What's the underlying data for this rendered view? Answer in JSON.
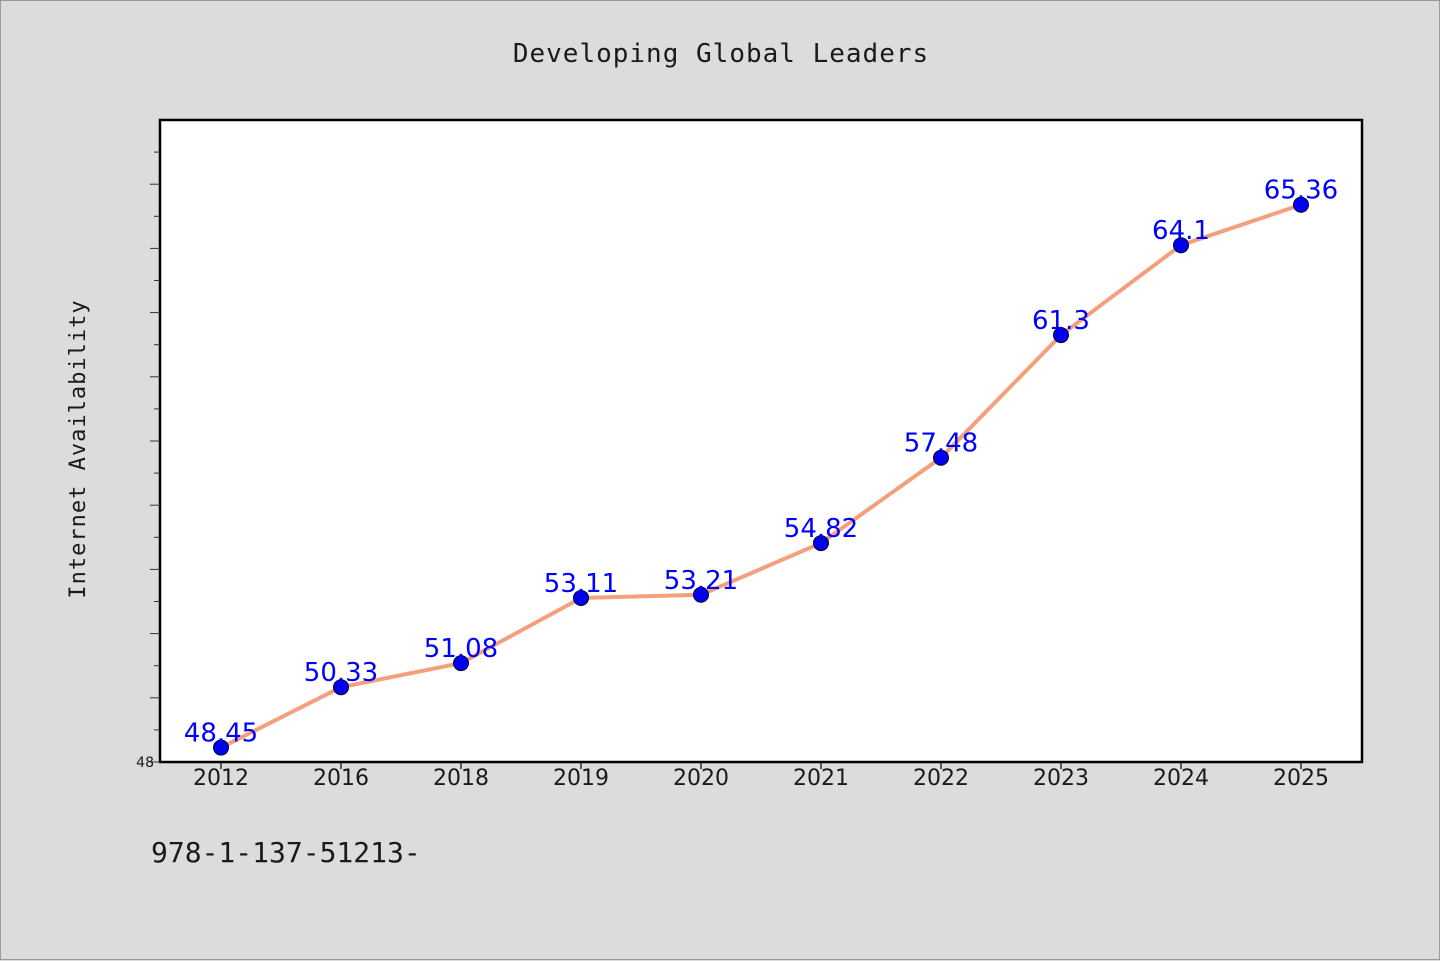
{
  "chart_data": {
    "type": "line",
    "title": "Developing Global Leaders",
    "xlabel": "",
    "ylabel": "Internet Availability",
    "categories": [
      "2012",
      "2016",
      "2018",
      "2019",
      "2020",
      "2021",
      "2022",
      "2023",
      "2024",
      "2025"
    ],
    "series": [
      {
        "values": [
          48.45,
          50.33,
          51.08,
          53.11,
          53.21,
          54.82,
          57.48,
          61.3,
          64.1,
          65.36
        ],
        "labels": [
          "48.45",
          "50.33",
          "51.08",
          "53.11",
          "53.21",
          "54.82",
          "57.48",
          "61.3",
          "64.1",
          "65.36"
        ]
      }
    ],
    "ylim": [
      48,
      68
    ],
    "ytick_labels": [
      "48"
    ],
    "grid": false,
    "legend": "none",
    "colors": {
      "line": "#f4a07e",
      "marker": "#0000ee",
      "label": "#0000ff",
      "background": "#dcdcdc",
      "plot_background": "#ffffff"
    }
  },
  "footer": {
    "text": "978-1-137-51213-"
  }
}
